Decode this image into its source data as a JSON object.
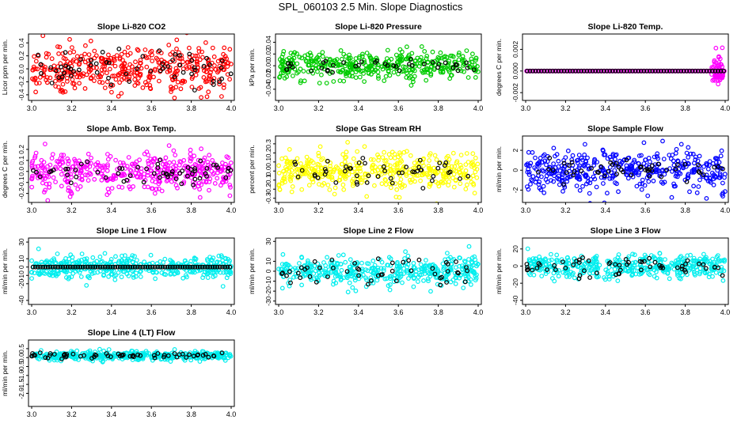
{
  "page_title": "SPL_060103  2.5 Min. Slope Diagnostics",
  "colors": {
    "co2": "#ff0000",
    "pressure": "#00cc00",
    "temp": "#ff00ff",
    "box_temp": "#ff00ff",
    "rh": "#ffff00",
    "sample_flow": "#0000ff",
    "line_flow": "#00eeee",
    "overlay": "#000000"
  },
  "chart_data": [
    {
      "type": "scatter",
      "title": "Slope Li-820 CO2",
      "ylabel": "Licor ppm per min.",
      "xlim": [
        3.0,
        4.0
      ],
      "x_ticks": [
        "3.0",
        "3.2",
        "3.4",
        "3.6",
        "3.8",
        "4.0"
      ],
      "ylim": [
        -0.45,
        0.5
      ],
      "y_ticks": [
        "-0.4",
        "-0.2",
        "0.0",
        "0.2",
        "0.4"
      ],
      "series": [
        {
          "color_key": "co2",
          "pattern": "spread",
          "spread": 0.18,
          "center": 0.0,
          "n": 420
        },
        {
          "color_key": "overlay",
          "pattern": "spread",
          "spread": 0.12,
          "center": 0.0,
          "n": 60
        }
      ]
    },
    {
      "type": "scatter",
      "title": "Slope Li-820 Pressure",
      "ylabel": "kPa per min.",
      "xlim": [
        3.0,
        4.0
      ],
      "x_ticks": [
        "3.0",
        "3.2",
        "3.4",
        "3.6",
        "3.8",
        "4.0"
      ],
      "ylim": [
        -0.055,
        0.05
      ],
      "y_ticks": [
        "-0.04",
        "-0.02",
        "0.00",
        "0.02",
        "0.04"
      ],
      "series": [
        {
          "color_key": "pressure",
          "pattern": "spread",
          "spread": 0.012,
          "center": 0.0,
          "n": 420
        },
        {
          "color_key": "overlay",
          "pattern": "spread",
          "spread": 0.006,
          "center": 0.0,
          "n": 40
        }
      ]
    },
    {
      "type": "scatter",
      "title": "Slope Li-820 Temp.",
      "ylabel": "degrees C per min.",
      "xlim": [
        3.0,
        4.0
      ],
      "x_ticks": [
        "3.0",
        "3.2",
        "3.4",
        "3.6",
        "3.8",
        "4.0"
      ],
      "ylim": [
        -0.0025,
        0.0032
      ],
      "y_ticks": [
        "-0.002",
        "0.000",
        "0.002"
      ],
      "series": [
        {
          "color_key": "temp",
          "pattern": "line",
          "center": 0.0,
          "n": 120
        },
        {
          "color_key": "temp",
          "pattern": "columns",
          "x_from": 3.93,
          "x_to": 3.99,
          "spread": 0.0009,
          "n": 60
        },
        {
          "color_key": "overlay",
          "pattern": "line",
          "center": 0.0,
          "n": 70
        }
      ]
    },
    {
      "type": "scatter",
      "title": "Slope Amb. Box Temp.",
      "ylabel": "degrees C per min.",
      "xlim": [
        3.0,
        4.0
      ],
      "x_ticks": [
        "3.0",
        "3.2",
        "3.4",
        "3.6",
        "3.8",
        "4.0"
      ],
      "ylim": [
        -0.26,
        0.3
      ],
      "y_ticks": [
        "-0.2",
        "-0.1",
        "0.0",
        "0.1",
        "0.2"
      ],
      "series": [
        {
          "color_key": "box_temp",
          "pattern": "spread",
          "spread": 0.09,
          "center": 0.0,
          "n": 420
        },
        {
          "color_key": "overlay",
          "pattern": "spread",
          "spread": 0.05,
          "center": 0.0,
          "n": 60
        }
      ]
    },
    {
      "type": "scatter",
      "title": "Slope Gas Stream RH",
      "ylabel": "percent per min.",
      "xlim": [
        3.0,
        4.0
      ],
      "x_ticks": [
        "3.0",
        "3.2",
        "3.4",
        "3.6",
        "3.8",
        "4.0"
      ],
      "ylim": [
        -0.32,
        0.36
      ],
      "y_ticks": [
        "-0.3",
        "-0.2",
        "-0.1",
        "0.0",
        "0.1",
        "0.2",
        "0.3"
      ],
      "series": [
        {
          "color_key": "rh",
          "pattern": "spread",
          "spread": 0.11,
          "center": 0.0,
          "n": 420
        },
        {
          "color_key": "overlay",
          "pattern": "spread",
          "spread": 0.08,
          "center": 0.0,
          "n": 50
        }
      ]
    },
    {
      "type": "scatter",
      "title": "Slope Sample Flow",
      "ylabel": "ml/min per min.",
      "xlim": [
        3.0,
        4.0
      ],
      "x_ticks": [
        "3.0",
        "3.2",
        "3.4",
        "3.6",
        "3.8",
        "4.0"
      ],
      "ylim": [
        -3.0,
        3.2
      ],
      "y_ticks": [
        "-2",
        "0",
        "2"
      ],
      "series": [
        {
          "color_key": "sample_flow",
          "pattern": "spread",
          "spread": 1.0,
          "center": 0.0,
          "n": 420
        },
        {
          "color_key": "overlay",
          "pattern": "spread",
          "spread": 0.5,
          "center": 0.0,
          "n": 50
        }
      ]
    },
    {
      "type": "scatter",
      "title": "Slope Line 1 Flow",
      "ylabel": "ml/min per min.",
      "xlim": [
        3.0,
        4.0
      ],
      "x_ticks": [
        "3.0",
        "3.2",
        "3.4",
        "3.6",
        "3.8",
        "4.0"
      ],
      "ylim": [
        -42,
        32
      ],
      "y_ticks": [
        "-40",
        "-20",
        "-10",
        "0",
        "10",
        "30"
      ],
      "series": [
        {
          "color_key": "line_flow",
          "pattern": "spread",
          "spread": 7,
          "center": 0.0,
          "n": 420
        },
        {
          "color_key": "overlay",
          "pattern": "line",
          "center": 0.0,
          "n": 80
        }
      ]
    },
    {
      "type": "scatter",
      "title": "Slope Line 2 Flow",
      "ylabel": "ml/min per min.",
      "xlim": [
        3.0,
        4.0
      ],
      "x_ticks": [
        "3.0",
        "3.2",
        "3.4",
        "3.6",
        "3.8",
        "4.0"
      ],
      "ylim": [
        -31,
        31
      ],
      "y_ticks": [
        "-30",
        "-20",
        "-10",
        "0",
        "10",
        "30"
      ],
      "series": [
        {
          "color_key": "line_flow",
          "pattern": "spread",
          "spread": 7,
          "center": 0.0,
          "n": 420
        },
        {
          "color_key": "overlay",
          "pattern": "spread",
          "spread": 6,
          "center": 0.0,
          "n": 50
        }
      ]
    },
    {
      "type": "scatter",
      "title": "Slope Line 3 Flow",
      "ylabel": "ml/min per min.",
      "xlim": [
        3.0,
        4.0
      ],
      "x_ticks": [
        "3.0",
        "3.2",
        "3.4",
        "3.6",
        "3.8",
        "4.0"
      ],
      "ylim": [
        -42,
        30
      ],
      "y_ticks": [
        "-40",
        "-20",
        "0",
        "20"
      ],
      "series": [
        {
          "color_key": "line_flow",
          "pattern": "spread",
          "spread": 7,
          "center": 0.0,
          "n": 420
        },
        {
          "color_key": "overlay",
          "pattern": "spread",
          "spread": 5,
          "center": 0.0,
          "n": 60
        }
      ]
    },
    {
      "type": "scatter",
      "title": "Slope Line 4 (LT) Flow",
      "ylabel": "ml/min per min.",
      "xlim": [
        3.0,
        4.0
      ],
      "x_ticks": [
        "3.0",
        "3.2",
        "3.4",
        "3.6",
        "3.8",
        "4.0"
      ],
      "ylim": [
        -2.6,
        0.85
      ],
      "y_ticks": [
        "-2.0",
        "-1.5",
        "-1.0",
        "-0.5",
        "0.0",
        "0.5"
      ],
      "series": [
        {
          "color_key": "line_flow",
          "pattern": "spread",
          "spread": 0.12,
          "center": 0.1,
          "n": 420
        },
        {
          "color_key": "overlay",
          "pattern": "spread",
          "spread": 0.08,
          "center": 0.1,
          "n": 60
        }
      ]
    }
  ]
}
